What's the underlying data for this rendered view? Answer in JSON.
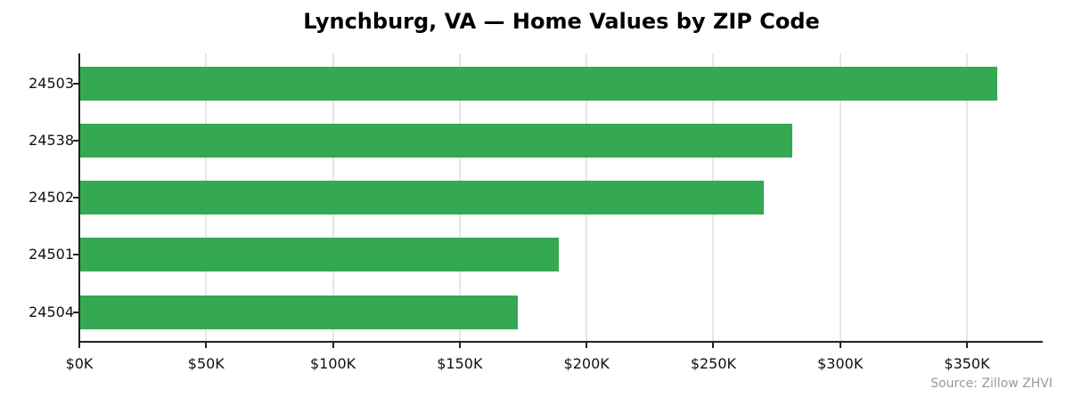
{
  "chart_data": {
    "type": "bar",
    "orientation": "horizontal",
    "title": "Lynchburg, VA — Home Values by ZIP Code",
    "xlabel": "",
    "ylabel": "",
    "categories": [
      "24503",
      "24538",
      "24502",
      "24501",
      "24504"
    ],
    "values": [
      362000,
      281000,
      270000,
      189000,
      173000
    ],
    "xlim": [
      0,
      380000
    ],
    "x_ticks": [
      "$0K",
      "$50K",
      "$100K",
      "$150K",
      "$200K",
      "$250K",
      "$300K",
      "$350K"
    ],
    "x_tick_values": [
      0,
      50000,
      100000,
      150000,
      200000,
      250000,
      300000,
      350000
    ],
    "grid": "vertical",
    "legend": null,
    "bar_color": "#34a853",
    "source": "Source: Zillow ZHVI"
  }
}
